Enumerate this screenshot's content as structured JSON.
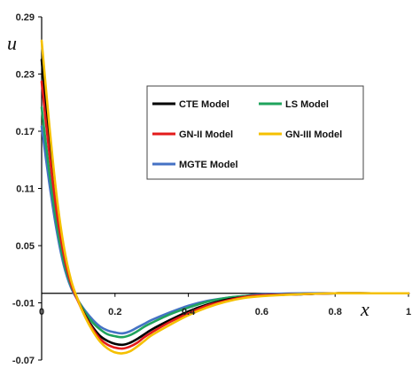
{
  "chart_data": {
    "type": "line",
    "title": "",
    "xlabel": "x",
    "ylabel": "u",
    "xlim": [
      0,
      1
    ],
    "ylim": [
      -0.07,
      0.29
    ],
    "x_ticks": [
      {
        "value": 0,
        "label": "0"
      },
      {
        "value": 0.2,
        "label": "0.2"
      },
      {
        "value": 0.4,
        "label": "0.4"
      },
      {
        "value": 0.6,
        "label": "0.6"
      },
      {
        "value": 0.8,
        "label": "0.8"
      },
      {
        "value": 1,
        "label": "1"
      }
    ],
    "y_ticks": [
      {
        "value": 0.29,
        "label": "0.29"
      },
      {
        "value": 0.23,
        "label": "0.23"
      },
      {
        "value": 0.17,
        "label": "0.17"
      },
      {
        "value": 0.11,
        "label": "0.11"
      },
      {
        "value": 0.05,
        "label": "0.05"
      },
      {
        "value": -0.01,
        "label": "-0.01"
      },
      {
        "value": -0.07,
        "label": "-0.07"
      }
    ],
    "grid": false,
    "legend_position": "center-right",
    "x": [
      0,
      0.02,
      0.04,
      0.06,
      0.08,
      0.1,
      0.12,
      0.14,
      0.16,
      0.18,
      0.2,
      0.22,
      0.24,
      0.26,
      0.28,
      0.3,
      0.35,
      0.4,
      0.45,
      0.5,
      0.55,
      0.6,
      0.7,
      0.8,
      0.9,
      1.0
    ],
    "series": [
      {
        "name": "CTE Model",
        "color": "#000000",
        "values": [
          0.245,
          0.165,
          0.095,
          0.045,
          0.012,
          -0.008,
          -0.024,
          -0.036,
          -0.045,
          -0.05,
          -0.053,
          -0.054,
          -0.052,
          -0.048,
          -0.043,
          -0.038,
          -0.028,
          -0.019,
          -0.012,
          -0.007,
          -0.004,
          -0.002,
          -0.001,
          0.0,
          0.0,
          0.0
        ]
      },
      {
        "name": "LS Model",
        "color": "#1fa35c",
        "values": [
          0.195,
          0.13,
          0.075,
          0.034,
          0.008,
          -0.008,
          -0.021,
          -0.031,
          -0.038,
          -0.043,
          -0.045,
          -0.046,
          -0.044,
          -0.04,
          -0.035,
          -0.031,
          -0.022,
          -0.015,
          -0.009,
          -0.005,
          -0.003,
          -0.002,
          -0.001,
          0.0,
          0.0,
          0.0
        ]
      },
      {
        "name": "GN-II Model",
        "color": "#e31b1b",
        "values": [
          0.222,
          0.15,
          0.088,
          0.041,
          0.01,
          -0.009,
          -0.025,
          -0.038,
          -0.048,
          -0.054,
          -0.057,
          -0.058,
          -0.056,
          -0.052,
          -0.046,
          -0.041,
          -0.03,
          -0.021,
          -0.013,
          -0.008,
          -0.004,
          -0.002,
          -0.001,
          0.0,
          0.0,
          0.0
        ]
      },
      {
        "name": "GN-III Model",
        "color": "#f5c000",
        "values": [
          0.265,
          0.18,
          0.105,
          0.05,
          0.014,
          -0.008,
          -0.026,
          -0.04,
          -0.051,
          -0.058,
          -0.062,
          -0.063,
          -0.061,
          -0.056,
          -0.05,
          -0.044,
          -0.033,
          -0.023,
          -0.015,
          -0.009,
          -0.005,
          -0.003,
          -0.001,
          0.0,
          0.0,
          0.0
        ]
      },
      {
        "name": "MGTE Model",
        "color": "#4472c4",
        "values": [
          0.175,
          0.118,
          0.068,
          0.03,
          0.006,
          -0.008,
          -0.019,
          -0.028,
          -0.035,
          -0.039,
          -0.041,
          -0.042,
          -0.04,
          -0.036,
          -0.032,
          -0.028,
          -0.02,
          -0.013,
          -0.008,
          -0.005,
          -0.003,
          -0.001,
          0.0,
          0.0,
          0.0,
          0.0
        ]
      }
    ]
  }
}
